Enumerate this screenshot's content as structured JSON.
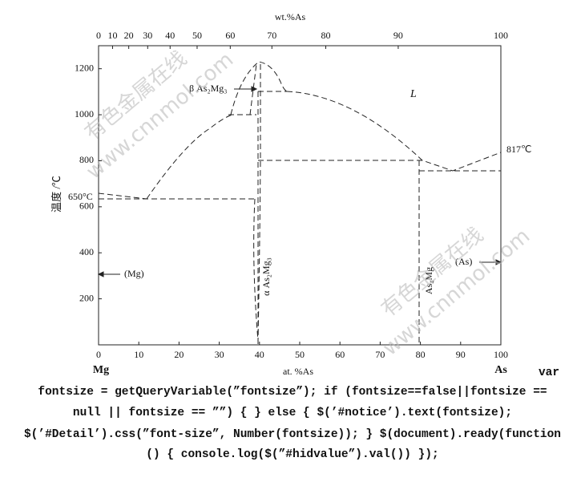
{
  "diagram": {
    "top_axis": {
      "label": "wt.%As",
      "ticks": [
        0,
        10,
        20,
        30,
        40,
        50,
        60,
        70,
        80,
        90,
        100
      ]
    },
    "bottom_axis": {
      "label": "at. %As",
      "ticks": [
        0,
        10,
        20,
        30,
        40,
        50,
        60,
        70,
        80,
        90,
        100
      ],
      "xlim": [
        0,
        100
      ],
      "left_end": "Mg",
      "right_end": "As"
    },
    "left_axis": {
      "label": "温度 /℃",
      "ticks": [
        200,
        400,
        600,
        800,
        1000,
        1200
      ],
      "ylim": [
        0,
        1300
      ]
    },
    "annotations": {
      "liquid": "L",
      "as_melt": "817℃",
      "mg_melt": "650°C",
      "beta": "β As₂Mg₃",
      "mg_phase": "(Mg)",
      "as_phase": "(As)",
      "alpha": "α As₂Mg₃",
      "as4mg": "As₄Mg"
    },
    "watermarks": [
      "有色金属在线",
      "www.cnnmol.com"
    ],
    "code_lines": [
      "var",
      "fontsize = getQueryVariable(”fontsize”); if (fontsize==false||fontsize ==",
      "null || fontsize == ””) { } else { $(’#notice’).text(fontsize);",
      "$(’#Detail’).css(”font-size”, Number(fontsize)); } $(document).ready(function",
      "() { console.log($(”#hidvalue”).val()) });"
    ]
  }
}
